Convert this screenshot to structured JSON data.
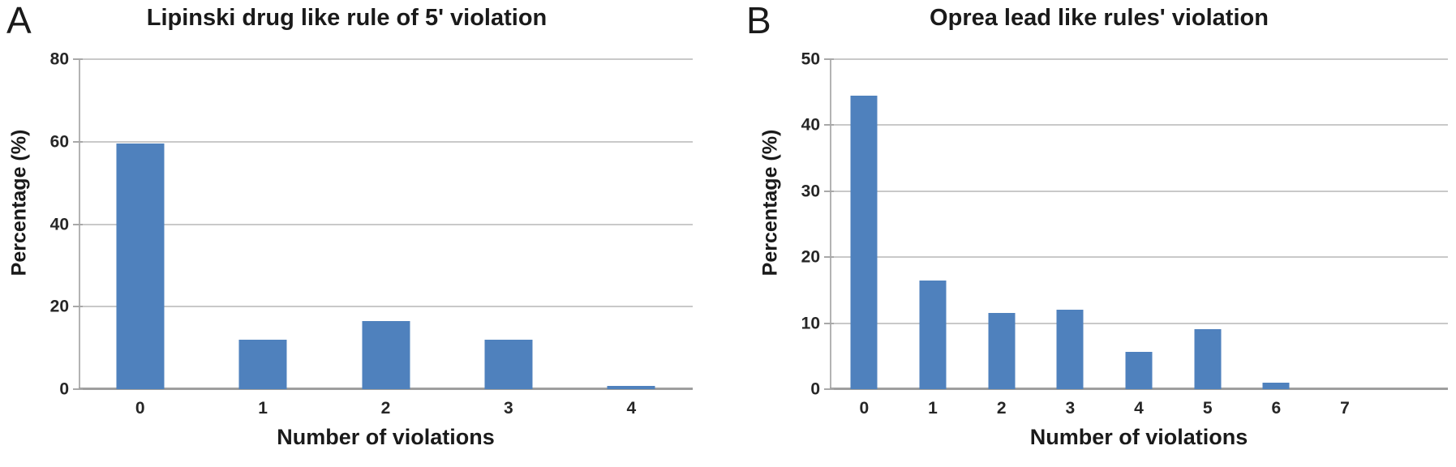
{
  "colors": {
    "bar": "#4f81bd",
    "gridline": "#c9c9c9",
    "baseline": "#9e9e9e",
    "axis_line": "#b3b3b3",
    "text": "#1a1a1a"
  },
  "chart_data": [
    {
      "type": "bar",
      "panel_label": "A",
      "title": "Lipinski drug like rule of 5' violation",
      "xlabel": "Number of violations",
      "ylabel": "Percentage (%)",
      "categories": [
        "0",
        "1",
        "2",
        "3",
        "4"
      ],
      "values": [
        59.5,
        12,
        16.5,
        12,
        0.7
      ],
      "ylim": [
        0,
        80
      ],
      "yticks": [
        0,
        20,
        40,
        60,
        80
      ],
      "grid": true,
      "legend": "none",
      "layout_hints": {
        "extra_right_slots": 0,
        "bar_width_fraction": 0.39
      }
    },
    {
      "type": "bar",
      "panel_label": "B",
      "title": "Oprea lead like rules' violation",
      "xlabel": "Number of violations",
      "ylabel": "Percentage (%)",
      "categories": [
        "0",
        "1",
        "2",
        "3",
        "4",
        "5",
        "6",
        "7"
      ],
      "values": [
        44.5,
        16.5,
        11.5,
        12,
        5.7,
        9.1,
        1,
        0
      ],
      "ylim": [
        0,
        50
      ],
      "yticks": [
        0,
        10,
        20,
        30,
        40,
        50
      ],
      "grid": true,
      "legend": "none",
      "layout_hints": {
        "extra_right_slots": 1,
        "bar_width_fraction": 0.39
      }
    }
  ]
}
